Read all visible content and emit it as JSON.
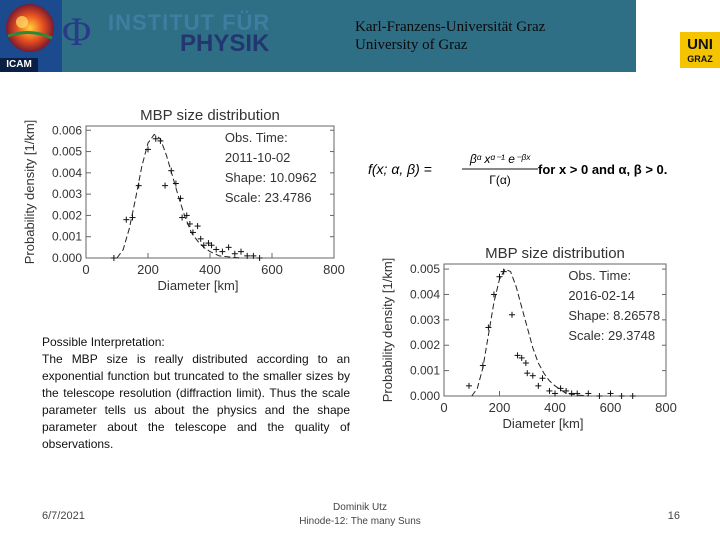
{
  "header": {
    "icam_label": "ICAM",
    "institute_symbol": "Φ",
    "institute_line1": "INSTITUT FÜR",
    "institute_line2": "PHYSIK",
    "university_line1": "Karl-Franzens-Universität Graz",
    "university_line2": "University of Graz",
    "uni_logo_line1": "UNI",
    "uni_logo_line2": "GRAZ"
  },
  "formula": {
    "lhs": "f(x; α, β) =",
    "numerator": "βᵅ xᵅ⁻¹ e⁻ᵝˣ",
    "denominator": "Γ(α)",
    "condition": "for x > 0 and α, β > 0."
  },
  "interpretation": {
    "heading": "Possible Interpretation:",
    "body": "The MBP size is really distributed according to an exponential function but truncated to the smaller sizes by the telescope resolution (diffraction limit). Thus the scale parameter tells us about the physics and the shape parameter about the telescope and the quality of observations."
  },
  "footer": {
    "date": "6/7/2021",
    "author": "Dominik Utz",
    "event": "Hinode-12: The many Suns",
    "page": "16"
  },
  "chart_data": [
    {
      "type": "scatter",
      "title": "MBP size distribution",
      "xlabel": "Diameter [km]",
      "ylabel": "Probability density [1/km]",
      "xlim": [
        0,
        800
      ],
      "ylim": [
        0,
        0.0062
      ],
      "x_ticks": [
        "0",
        "200",
        "400",
        "600",
        "800"
      ],
      "y_ticks": [
        "0.000",
        "0.001",
        "0.002",
        "0.003",
        "0.004",
        "0.005",
        "0.006"
      ],
      "legend": [
        "Obs. Time:",
        "2011-10-02",
        "Shape:  10.0962",
        "Scale:  23.4786"
      ],
      "grid": false,
      "points": [
        {
          "x": 90,
          "y": 0.0
        },
        {
          "x": 130,
          "y": 0.0018
        },
        {
          "x": 150,
          "y": 0.0019
        },
        {
          "x": 170,
          "y": 0.0034
        },
        {
          "x": 200,
          "y": 0.0051
        },
        {
          "x": 225,
          "y": 0.0056
        },
        {
          "x": 240,
          "y": 0.0055
        },
        {
          "x": 255,
          "y": 0.0034
        },
        {
          "x": 275,
          "y": 0.0041
        },
        {
          "x": 290,
          "y": 0.0035
        },
        {
          "x": 305,
          "y": 0.0028
        },
        {
          "x": 310,
          "y": 0.0019
        },
        {
          "x": 325,
          "y": 0.002
        },
        {
          "x": 335,
          "y": 0.0016
        },
        {
          "x": 345,
          "y": 0.0012
        },
        {
          "x": 360,
          "y": 0.0015
        },
        {
          "x": 370,
          "y": 0.0009
        },
        {
          "x": 380,
          "y": 0.0006
        },
        {
          "x": 395,
          "y": 0.0007
        },
        {
          "x": 405,
          "y": 0.0006
        },
        {
          "x": 420,
          "y": 0.0004
        },
        {
          "x": 440,
          "y": 0.0003
        },
        {
          "x": 460,
          "y": 0.0005
        },
        {
          "x": 480,
          "y": 0.0002
        },
        {
          "x": 500,
          "y": 0.0003
        },
        {
          "x": 520,
          "y": 0.0001
        },
        {
          "x": 540,
          "y": 0.0001
        },
        {
          "x": 560,
          "y": 0.0
        }
      ],
      "curve": [
        {
          "x": 100,
          "y": 0.0
        },
        {
          "x": 120,
          "y": 0.0004
        },
        {
          "x": 140,
          "y": 0.0014
        },
        {
          "x": 160,
          "y": 0.0028
        },
        {
          "x": 180,
          "y": 0.0043
        },
        {
          "x": 200,
          "y": 0.0054
        },
        {
          "x": 220,
          "y": 0.0058
        },
        {
          "x": 240,
          "y": 0.0056
        },
        {
          "x": 260,
          "y": 0.0048
        },
        {
          "x": 280,
          "y": 0.0038
        },
        {
          "x": 300,
          "y": 0.0028
        },
        {
          "x": 320,
          "y": 0.0019
        },
        {
          "x": 340,
          "y": 0.0012
        },
        {
          "x": 360,
          "y": 0.0008
        },
        {
          "x": 380,
          "y": 0.0005
        },
        {
          "x": 400,
          "y": 0.0003
        },
        {
          "x": 430,
          "y": 0.0001
        },
        {
          "x": 460,
          "y": 5e-05
        },
        {
          "x": 500,
          "y": 0.0
        }
      ]
    },
    {
      "type": "scatter",
      "title": "MBP size distribution",
      "xlabel": "Diameter [km]",
      "ylabel": "Probability density [1/km]",
      "xlim": [
        0,
        800
      ],
      "ylim": [
        0,
        0.0052
      ],
      "x_ticks": [
        "0",
        "200",
        "400",
        "600",
        "800"
      ],
      "y_ticks": [
        "0.000",
        "0.001",
        "0.002",
        "0.003",
        "0.004",
        "0.005"
      ],
      "legend": [
        "Obs. Time:",
        "2016-02-14",
        "Shape:  8.26578",
        "Scale:  29.3748"
      ],
      "grid": false,
      "points": [
        {
          "x": 90,
          "y": 0.0004
        },
        {
          "x": 140,
          "y": 0.0012
        },
        {
          "x": 160,
          "y": 0.0027
        },
        {
          "x": 180,
          "y": 0.004
        },
        {
          "x": 200,
          "y": 0.0047
        },
        {
          "x": 215,
          "y": 0.0049
        },
        {
          "x": 245,
          "y": 0.0032
        },
        {
          "x": 265,
          "y": 0.0016
        },
        {
          "x": 280,
          "y": 0.0015
        },
        {
          "x": 295,
          "y": 0.0013
        },
        {
          "x": 300,
          "y": 0.0009
        },
        {
          "x": 320,
          "y": 0.0008
        },
        {
          "x": 340,
          "y": 0.0004
        },
        {
          "x": 355,
          "y": 0.0007
        },
        {
          "x": 380,
          "y": 0.0002
        },
        {
          "x": 400,
          "y": 0.0001
        },
        {
          "x": 420,
          "y": 0.0003
        },
        {
          "x": 440,
          "y": 0.0002
        },
        {
          "x": 460,
          "y": 0.0001
        },
        {
          "x": 480,
          "y": 0.0001
        },
        {
          "x": 520,
          "y": 0.0001
        },
        {
          "x": 560,
          "y": 0.0
        },
        {
          "x": 600,
          "y": 0.0001
        },
        {
          "x": 640,
          "y": 0.0
        },
        {
          "x": 680,
          "y": 0.0
        }
      ],
      "curve": [
        {
          "x": 100,
          "y": 0.0
        },
        {
          "x": 120,
          "y": 0.0003
        },
        {
          "x": 140,
          "y": 0.0011
        },
        {
          "x": 160,
          "y": 0.0024
        },
        {
          "x": 180,
          "y": 0.0037
        },
        {
          "x": 200,
          "y": 0.0046
        },
        {
          "x": 220,
          "y": 0.005
        },
        {
          "x": 240,
          "y": 0.0049
        },
        {
          "x": 260,
          "y": 0.0043
        },
        {
          "x": 280,
          "y": 0.0035
        },
        {
          "x": 300,
          "y": 0.0027
        },
        {
          "x": 320,
          "y": 0.0019
        },
        {
          "x": 340,
          "y": 0.0013
        },
        {
          "x": 360,
          "y": 0.0009
        },
        {
          "x": 380,
          "y": 0.0006
        },
        {
          "x": 400,
          "y": 0.0004
        },
        {
          "x": 440,
          "y": 0.0001
        },
        {
          "x": 480,
          "y": 4e-05
        },
        {
          "x": 520,
          "y": 0.0
        }
      ]
    }
  ]
}
